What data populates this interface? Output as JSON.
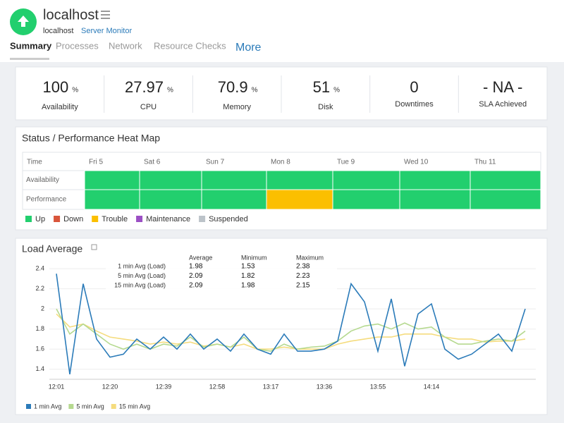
{
  "header": {
    "title": "localhost",
    "host": "localhost",
    "link": "Server Monitor"
  },
  "tabs": [
    "Summary",
    "Processes",
    "Network",
    "Resource Checks",
    "More"
  ],
  "stats": [
    {
      "value": 100,
      "unit": "%",
      "label": "Availability"
    },
    {
      "value": 27.97,
      "unit": "%",
      "label": "CPU"
    },
    {
      "value": 70.9,
      "unit": "%",
      "label": "Memory"
    },
    {
      "value": 51,
      "unit": "%",
      "label": "Disk"
    },
    {
      "value": 0,
      "label": "Downtimes"
    },
    {
      "value": "- NA -",
      "label": "SLA Achieved"
    }
  ],
  "heatmap": {
    "title": "Status / Performance Heat Map",
    "columns": [
      "Time",
      "Fri 5",
      "Sat 6",
      "Sun 7",
      "Mon 8",
      "Tue 9",
      "Wed 10",
      "Thu 11"
    ],
    "rows": [
      {
        "label": "Availability",
        "cells": [
          "#22cf6e",
          "#22cf6e",
          "#22cf6e",
          "#22cf6e",
          "#22cf6e",
          "#22cf6e",
          "#22cf6e"
        ]
      },
      {
        "label": "Performance",
        "cells": [
          "#22cf6e",
          "#22cf6e",
          "#22cf6e",
          "#fbbf00",
          "#22cf6e",
          "#22cf6e",
          "#22cf6e"
        ]
      }
    ],
    "legend": [
      {
        "name": "Up",
        "color": "#22cf6e"
      },
      {
        "name": "Down",
        "color": "#d9553b"
      },
      {
        "name": "Trouble",
        "color": "#fbbf00"
      },
      {
        "name": "Maintenance",
        "color": "#9b4fc4"
      },
      {
        "name": "Suspended",
        "color": "#bcc3c9"
      }
    ]
  },
  "chart_data": {
    "type": "line",
    "title": "Load Average",
    "categories": [
      "12:01",
      null,
      null,
      null,
      "12:20",
      null,
      null,
      null,
      "12:39",
      null,
      null,
      null,
      "12:58",
      null,
      null,
      null,
      "13:17",
      null,
      null,
      null,
      "13:36",
      null,
      null,
      null,
      "13:55",
      null,
      null,
      null,
      "14:14",
      null,
      null,
      null,
      null,
      null,
      null,
      null
    ],
    "series": [
      {
        "name": "1 min Avg",
        "color": "#2b7bb9",
        "values": [
          2.35,
          1.35,
          2.25,
          1.7,
          1.52,
          1.55,
          1.7,
          1.6,
          1.72,
          1.6,
          1.75,
          1.6,
          1.7,
          1.58,
          1.75,
          1.6,
          1.55,
          1.75,
          1.58,
          1.58,
          1.6,
          1.68,
          2.25,
          2.07,
          1.58,
          2.1,
          1.43,
          1.95,
          2.05,
          1.6,
          1.5,
          1.55,
          1.65,
          1.75,
          1.58,
          2.0
        ]
      },
      {
        "name": "5 min Avg",
        "color": "#b5d98f",
        "values": [
          2.0,
          1.75,
          1.85,
          1.75,
          1.65,
          1.6,
          1.65,
          1.6,
          1.65,
          1.63,
          1.72,
          1.62,
          1.65,
          1.62,
          1.72,
          1.6,
          1.58,
          1.65,
          1.6,
          1.62,
          1.63,
          1.68,
          1.78,
          1.83,
          1.85,
          1.8,
          1.86,
          1.8,
          1.82,
          1.72,
          1.65,
          1.65,
          1.68,
          1.7,
          1.68,
          1.78
        ]
      },
      {
        "name": "15 min Avg",
        "color": "#f5dc7e",
        "values": [
          1.95,
          1.82,
          1.85,
          1.78,
          1.72,
          1.7,
          1.68,
          1.65,
          1.67,
          1.65,
          1.67,
          1.63,
          1.65,
          1.62,
          1.65,
          1.6,
          1.6,
          1.62,
          1.6,
          1.6,
          1.6,
          1.65,
          1.68,
          1.7,
          1.72,
          1.72,
          1.75,
          1.75,
          1.75,
          1.72,
          1.7,
          1.7,
          1.67,
          1.68,
          1.68,
          1.7
        ]
      }
    ],
    "ylim": [
      1.3,
      2.45
    ],
    "yticks": [
      1.4,
      1.6,
      1.8,
      2,
      2.2,
      2.4
    ],
    "grid": true,
    "summary": {
      "columns": [
        "Average",
        "Minimum",
        "Maximum"
      ],
      "rows": [
        {
          "label": "1 min Avg (Load)",
          "values": [
            1.98,
            1.53,
            2.38
          ]
        },
        {
          "label": "5 min Avg (Load)",
          "values": [
            2.09,
            1.82,
            2.23
          ]
        },
        {
          "label": "15 min Avg (Load)",
          "values": [
            2.09,
            1.98,
            2.15
          ]
        }
      ]
    }
  }
}
